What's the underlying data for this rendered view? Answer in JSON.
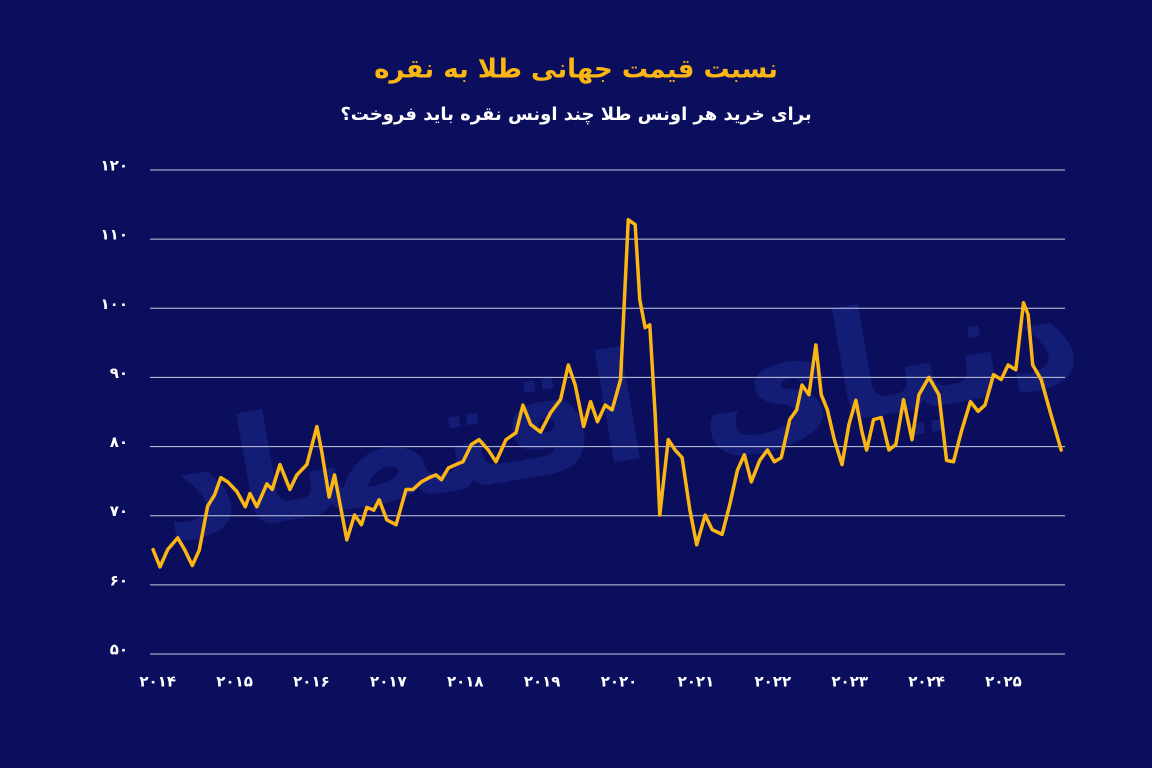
{
  "chart_data": {
    "type": "line",
    "title": "نسبت قیمت جهانی طلا به نقره",
    "subtitle": "برای خرید هر اونس طلا چند اونس نقره باید فروخت؟",
    "watermark": "دنیای اقتصاد",
    "x": [
      2013.94,
      2014.03,
      2014.13,
      2014.26,
      2014.35,
      2014.45,
      2014.54,
      2014.65,
      2014.74,
      2014.82,
      2014.91,
      2015.03,
      2015.14,
      2015.2,
      2015.29,
      2015.42,
      2015.49,
      2015.59,
      2015.72,
      2015.81,
      2015.94,
      2016.07,
      2016.13,
      2016.23,
      2016.3,
      2016.46,
      2016.56,
      2016.65,
      2016.72,
      2016.81,
      2016.88,
      2016.98,
      2017.1,
      2017.23,
      2017.32,
      2017.43,
      2017.53,
      2017.62,
      2017.69,
      2017.78,
      2017.88,
      2017.97,
      2018.08,
      2018.18,
      2018.3,
      2018.4,
      2018.53,
      2018.66,
      2018.75,
      2018.85,
      2018.98,
      2019.11,
      2019.24,
      2019.34,
      2019.43,
      2019.54,
      2019.63,
      2019.72,
      2019.82,
      2019.91,
      2020.02,
      2020.12,
      2020.21,
      2020.27,
      2020.34,
      2020.4,
      2020.47,
      2020.53,
      2020.64,
      2020.73,
      2020.82,
      2020.92,
      2021.01,
      2021.12,
      2021.21,
      2021.34,
      2021.44,
      2021.54,
      2021.63,
      2021.72,
      2021.83,
      2021.93,
      2022.02,
      2022.11,
      2022.22,
      2022.31,
      2022.38,
      2022.47,
      2022.56,
      2022.63,
      2022.71,
      2022.8,
      2022.9,
      2022.99,
      2023.08,
      2023.16,
      2023.22,
      2023.31,
      2023.41,
      2023.51,
      2023.6,
      2023.7,
      2023.81,
      2023.9,
      2024.03,
      2024.16,
      2024.26,
      2024.35,
      2024.45,
      2024.57,
      2024.67,
      2024.76,
      2024.87,
      2024.97,
      2025.06,
      2025.16,
      2025.26,
      2025.32,
      2025.38,
      2025.49,
      2025.6,
      2025.75
    ],
    "series": [
      {
        "color": "#fbb614",
        "values": [
          65.1,
          62.6,
          65.1,
          66.8,
          65.1,
          62.8,
          65,
          71.4,
          73,
          75.5,
          74.9,
          73.5,
          71.3,
          73.2,
          71.3,
          74.6,
          73.8,
          77.4,
          73.8,
          75.9,
          77.4,
          82.9,
          79.5,
          72.7,
          75.9,
          66.5,
          70.1,
          68.7,
          71.2,
          70.8,
          72.3,
          69.4,
          68.7,
          73.8,
          73.8,
          74.9,
          75.5,
          75.9,
          75.2,
          76.9,
          77.4,
          77.8,
          80.3,
          81,
          79.5,
          77.8,
          81,
          82,
          86,
          83.2,
          82.1,
          84.9,
          86.8,
          91.8,
          88.9,
          82.9,
          86.5,
          83.6,
          86,
          85.3,
          89.7,
          112.8,
          112.1,
          101.2,
          97.2,
          97.6,
          84.6,
          70.1,
          81,
          79.5,
          78.4,
          70.9,
          65.8,
          70.1,
          68,
          67.3,
          71.6,
          76.6,
          78.8,
          74.9,
          78,
          79.5,
          77.8,
          78.4,
          83.9,
          85.3,
          88.9,
          87.5,
          94.7,
          87.5,
          85.3,
          81,
          77.4,
          83.2,
          86.7,
          82.1,
          79.5,
          83.9,
          84.2,
          79.5,
          80.3,
          86.8,
          81,
          87.5,
          90,
          87.5,
          78,
          77.8,
          82.1,
          86.5,
          85.1,
          86,
          90.4,
          89.7,
          91.8,
          91.1,
          100.8,
          99.1,
          91.8,
          89.7,
          85.3,
          79.5
        ]
      }
    ],
    "xlim": [
      2013.9,
      2025.8
    ],
    "xticks": [
      {
        "value": 2014,
        "label": "۲۰۱۴"
      },
      {
        "value": 2015,
        "label": "۲۰۱۵"
      },
      {
        "value": 2016,
        "label": "۲۰۱۶"
      },
      {
        "value": 2017,
        "label": "۲۰۱۷"
      },
      {
        "value": 2018,
        "label": "۲۰۱۸"
      },
      {
        "value": 2019,
        "label": "۲۰۱۹"
      },
      {
        "value": 2020,
        "label": "۲۰۲۰"
      },
      {
        "value": 2021,
        "label": "۲۰۲۱"
      },
      {
        "value": 2022,
        "label": "۲۰۲۲"
      },
      {
        "value": 2023,
        "label": "۲۰۲۳"
      },
      {
        "value": 2024,
        "label": "۲۰۲۴"
      },
      {
        "value": 2025,
        "label": "۲۰۲۵"
      }
    ],
    "ylim": [
      50,
      120
    ],
    "yticks": [
      {
        "value": 50,
        "label": "۵۰"
      },
      {
        "value": 60,
        "label": "۶۰"
      },
      {
        "value": 70,
        "label": "۷۰"
      },
      {
        "value": 80,
        "label": "۸۰"
      },
      {
        "value": 90,
        "label": "۹۰"
      },
      {
        "value": 100,
        "label": "۱۰۰"
      },
      {
        "value": 110,
        "label": "۱۱۰"
      },
      {
        "value": 120,
        "label": "۱۲۰"
      }
    ],
    "grid": true
  }
}
